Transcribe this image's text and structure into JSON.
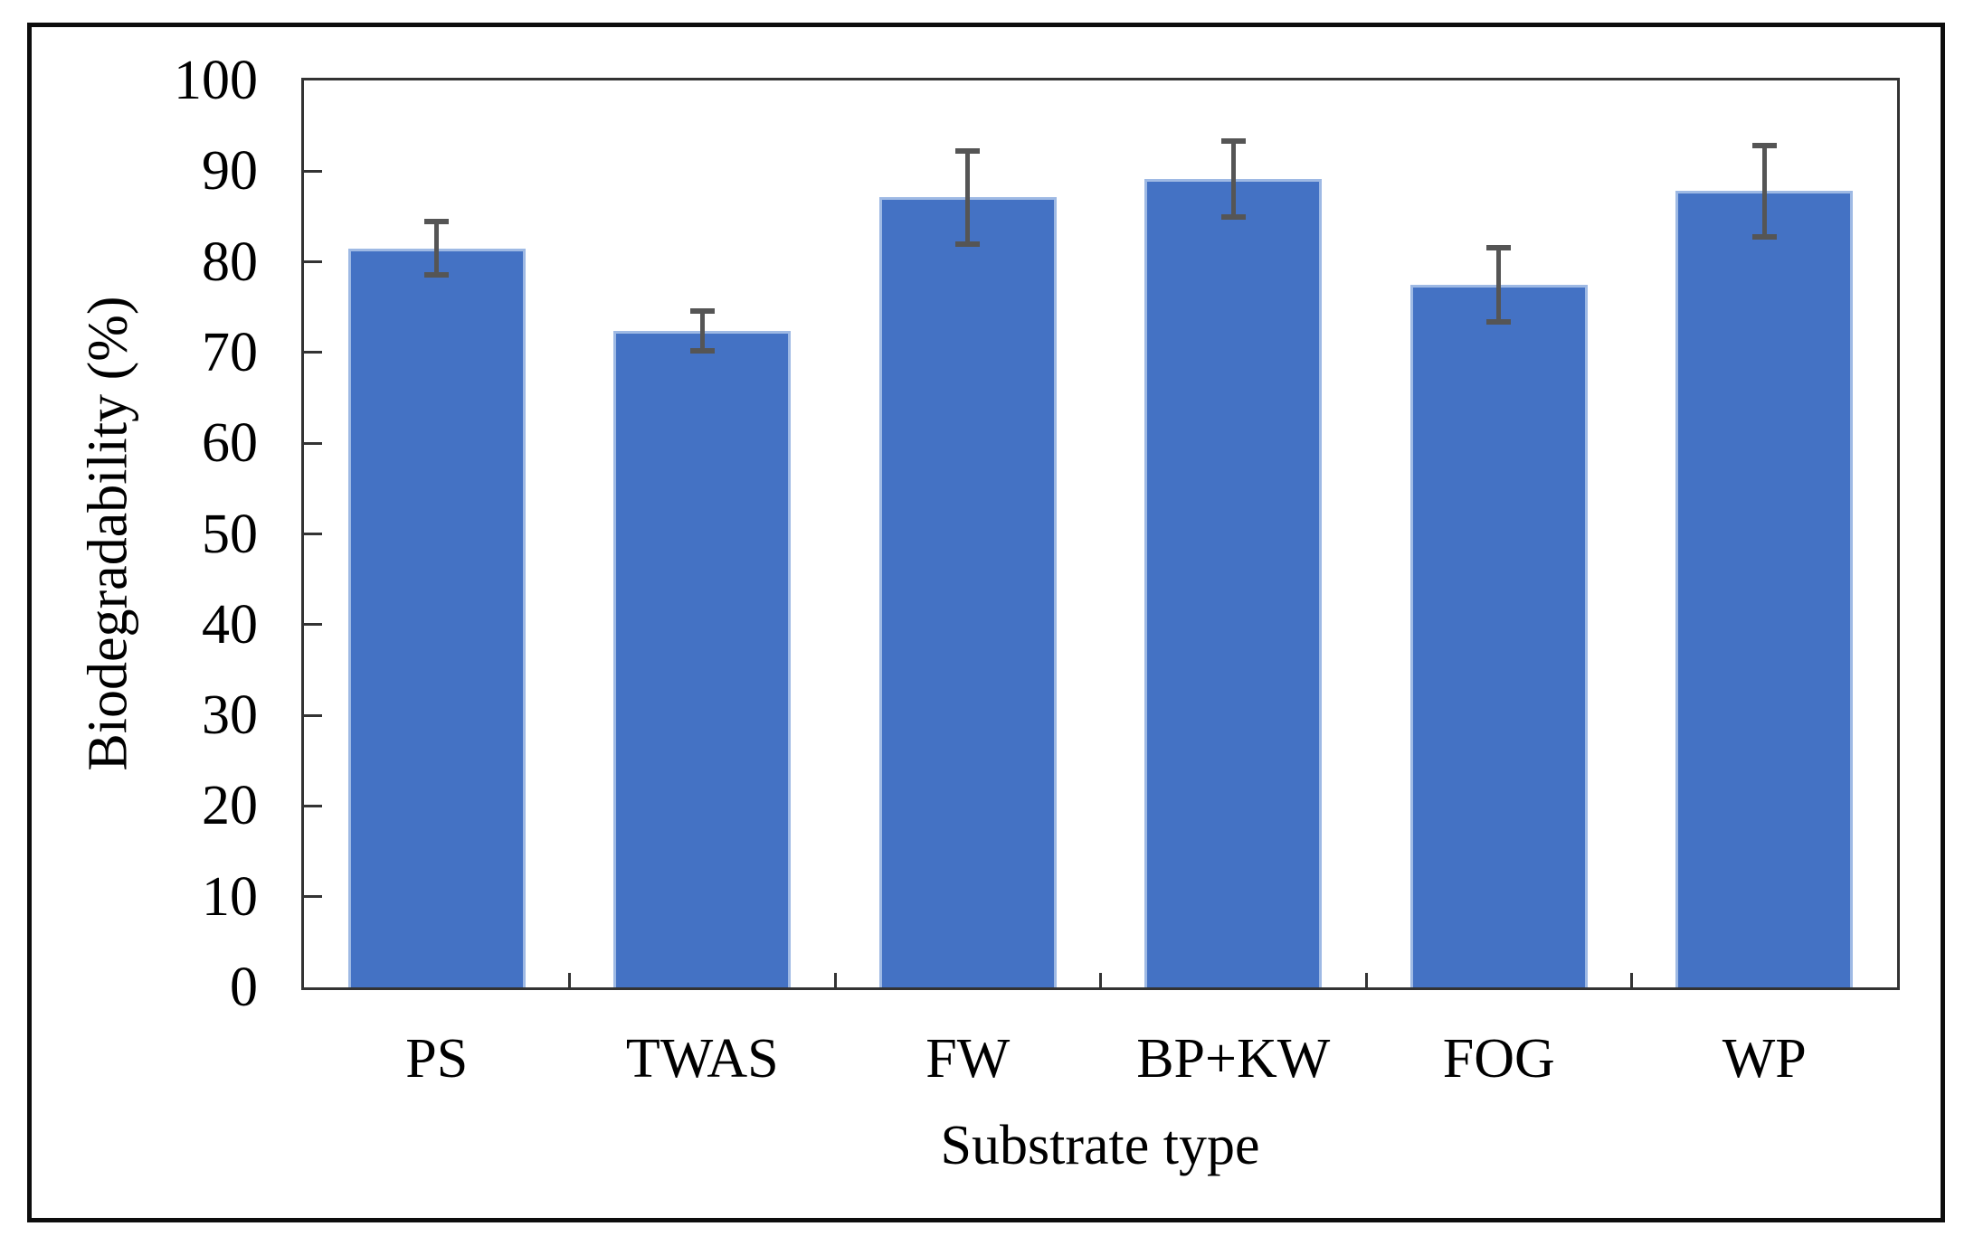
{
  "chart_data": {
    "type": "bar",
    "title": "",
    "categories": [
      "PS",
      "TWAS",
      "FW",
      "BP+KW",
      "FOG",
      "WP"
    ],
    "values": [
      81.5,
      72.4,
      87.1,
      89.1,
      77.5,
      87.8
    ],
    "errors": [
      2.9,
      2.2,
      5.1,
      4.2,
      4.1,
      5.0
    ],
    "xlabel": "Substrate type",
    "ylabel": "Biodegradability (%)",
    "ylim": [
      0,
      100
    ],
    "yticks": [
      0,
      10,
      20,
      30,
      40,
      50,
      60,
      70,
      80,
      90,
      100
    ],
    "grid": false,
    "legend_position": "none",
    "bar_color": "#4472C4",
    "bar_border_color": "#9EB9E4",
    "error_bar_color": "#555555",
    "axis_color": "#333333",
    "frame_color": "#0d0d0d"
  }
}
